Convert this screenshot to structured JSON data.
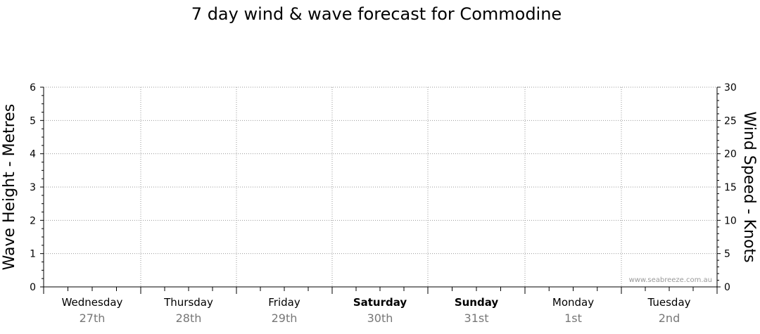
{
  "chart_data": {
    "type": "line",
    "title": "7 day wind & wave forecast for Commodine",
    "ylabel_left": "Wave Height - Metres",
    "ylabel_right": "Wind Speed - Knots",
    "ylim_left": [
      0,
      6
    ],
    "ylim_right": [
      0,
      30
    ],
    "yticks_left": [
      "0",
      "1",
      "2",
      "3",
      "4",
      "5",
      "6"
    ],
    "yticks_right": [
      "0",
      "5",
      "10",
      "15",
      "20",
      "25",
      "30"
    ],
    "grid": true,
    "days": [
      {
        "name": "Wednesday",
        "date": "27th",
        "bold": false
      },
      {
        "name": "Thursday",
        "date": "28th",
        "bold": false
      },
      {
        "name": "Friday",
        "date": "29th",
        "bold": false
      },
      {
        "name": "Saturday",
        "date": "30th",
        "bold": true
      },
      {
        "name": "Sunday",
        "date": "31st",
        "bold": true
      },
      {
        "name": "Monday",
        "date": "1st",
        "bold": false
      },
      {
        "name": "Tuesday",
        "date": "2nd",
        "bold": false
      }
    ],
    "series": [],
    "watermark": "www.seabreeze.com.au"
  }
}
